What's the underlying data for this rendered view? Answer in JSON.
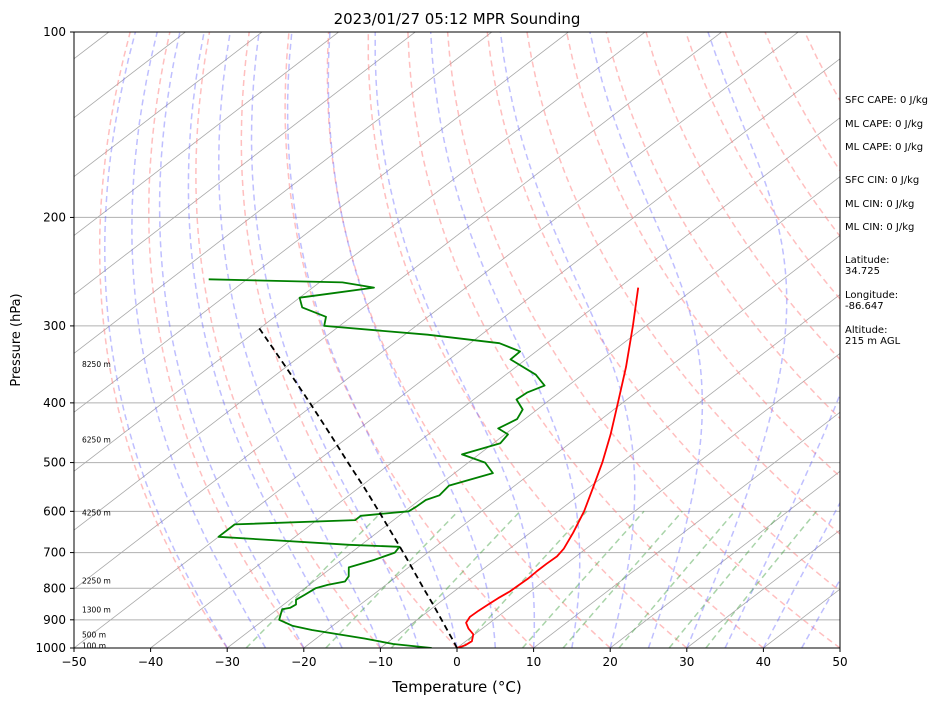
{
  "chart_data": {
    "type": "line",
    "title": "2023/01/27 05:12 MPR Sounding",
    "xlabel": "Temperature (°C)",
    "ylabel": "Pressure (hPa)",
    "xlim": [
      -50,
      50
    ],
    "ylim": [
      1000,
      100
    ],
    "y_scale": "log",
    "skew": "skew-T",
    "grid": true,
    "x_ticks": [
      "−50",
      "−40",
      "−30",
      "−20",
      "−10",
      "0",
      "10",
      "20",
      "30",
      "40",
      "50"
    ],
    "y_ticks": [
      "100",
      "200",
      "300",
      "400",
      "500",
      "600",
      "700",
      "800",
      "900",
      "1000"
    ],
    "height_labels": [
      {
        "text": "100 m",
        "p": 995
      },
      {
        "text": "500 m",
        "p": 955
      },
      {
        "text": "1300 m",
        "p": 870
      },
      {
        "text": "2250 m",
        "p": 780
      },
      {
        "text": "4250 m",
        "p": 605
      },
      {
        "text": "6250 m",
        "p": 460
      },
      {
        "text": "8250 m",
        "p": 347
      }
    ],
    "series": [
      {
        "key": "temperature",
        "color": "#ff0000",
        "points": [
          [
            1000,
            0.0
          ],
          [
            990,
            0.6
          ],
          [
            975,
            0.8
          ],
          [
            950,
            -0.2
          ],
          [
            930,
            -1.8
          ],
          [
            910,
            -3.1
          ],
          [
            890,
            -3.6
          ],
          [
            870,
            -3.5
          ],
          [
            850,
            -3.3
          ],
          [
            830,
            -3.1
          ],
          [
            810,
            -2.7
          ],
          [
            790,
            -2.6
          ],
          [
            770,
            -2.5
          ],
          [
            750,
            -2.6
          ],
          [
            730,
            -2.6
          ],
          [
            710,
            -2.5
          ],
          [
            690,
            -2.9
          ],
          [
            650,
            -4.4
          ],
          [
            600,
            -6.6
          ],
          [
            550,
            -9.4
          ],
          [
            500,
            -12.5
          ],
          [
            450,
            -16.2
          ],
          [
            400,
            -20.6
          ],
          [
            350,
            -25.6
          ],
          [
            300,
            -31.7
          ],
          [
            260,
            -37.5
          ]
        ]
      },
      {
        "key": "dewpoint",
        "color": "#008000",
        "points": [
          [
            1000,
            -3.3
          ],
          [
            985,
            -9.0
          ],
          [
            965,
            -13.7
          ],
          [
            935,
            -22.0
          ],
          [
            920,
            -25.3
          ],
          [
            900,
            -28.0
          ],
          [
            880,
            -28.8
          ],
          [
            865,
            -29.4
          ],
          [
            860,
            -28.6
          ],
          [
            850,
            -28.4
          ],
          [
            835,
            -29.2
          ],
          [
            820,
            -28.9
          ],
          [
            800,
            -28.6
          ],
          [
            790,
            -27.6
          ],
          [
            780,
            -25.9
          ],
          [
            765,
            -26.3
          ],
          [
            740,
            -27.8
          ],
          [
            720,
            -25.8
          ],
          [
            700,
            -24.3
          ],
          [
            685,
            -24.7
          ],
          [
            680,
            -31.6
          ],
          [
            660,
            -50.0
          ],
          [
            630,
            -50.0
          ],
          [
            620,
            -35.0
          ],
          [
            610,
            -35.0
          ],
          [
            600,
            -29.5
          ],
          [
            590,
            -29.3
          ],
          [
            575,
            -29.2
          ],
          [
            565,
            -28.2
          ],
          [
            545,
            -28.6
          ],
          [
            520,
            -25.0
          ],
          [
            500,
            -27.8
          ],
          [
            485,
            -32.2
          ],
          [
            465,
            -29.1
          ],
          [
            450,
            -29.6
          ],
          [
            440,
            -31.9
          ],
          [
            425,
            -31.0
          ],
          [
            410,
            -31.9
          ],
          [
            395,
            -34.4
          ],
          [
            385,
            -34.2
          ],
          [
            375,
            -33.1
          ],
          [
            360,
            -36.1
          ],
          [
            340,
            -42.0
          ],
          [
            330,
            -42.1
          ],
          [
            320,
            -46.2
          ],
          [
            310,
            -57.0
          ],
          [
            300,
            -72.0
          ],
          [
            290,
            -73.3
          ],
          [
            280,
            -78.0
          ],
          [
            270,
            -80.0
          ],
          [
            265,
            -76.0
          ],
          [
            260,
            -72.0
          ],
          [
            255,
            -77.0
          ],
          [
            252,
            -95.0
          ]
        ]
      },
      {
        "key": "parcel",
        "color": "#000000",
        "points": [
          [
            1000,
            0.0
          ],
          [
            975,
            -1.6
          ],
          [
            950,
            -3.3
          ],
          [
            900,
            -6.8
          ],
          [
            850,
            -10.5
          ],
          [
            800,
            -14.5
          ],
          [
            750,
            -18.7
          ],
          [
            700,
            -23.2
          ],
          [
            650,
            -28.1
          ],
          [
            600,
            -33.4
          ],
          [
            550,
            -39.2
          ],
          [
            500,
            -45.7
          ],
          [
            450,
            -52.8
          ],
          [
            400,
            -60.8
          ],
          [
            350,
            -70.0
          ],
          [
            300,
            -80.7
          ]
        ]
      }
    ],
    "legend": [],
    "annotations": {
      "sfc_cape": "SFC CAPE: 0 J/kg",
      "ml_cape_1": "ML CAPE: 0 J/kg",
      "ml_cape_2": "ML CAPE: 0 J/kg",
      "sfc_cin": "SFC CIN: 0 J/kg",
      "ml_cin_1": "ML CIN: 0 J/kg",
      "ml_cin_2": "ML CIN: 0 J/kg",
      "latitude": "Latitude:\n34.725",
      "longitude": "Longitude:\n-86.647",
      "altitude": "Altitude:\n215 m AGL"
    }
  }
}
